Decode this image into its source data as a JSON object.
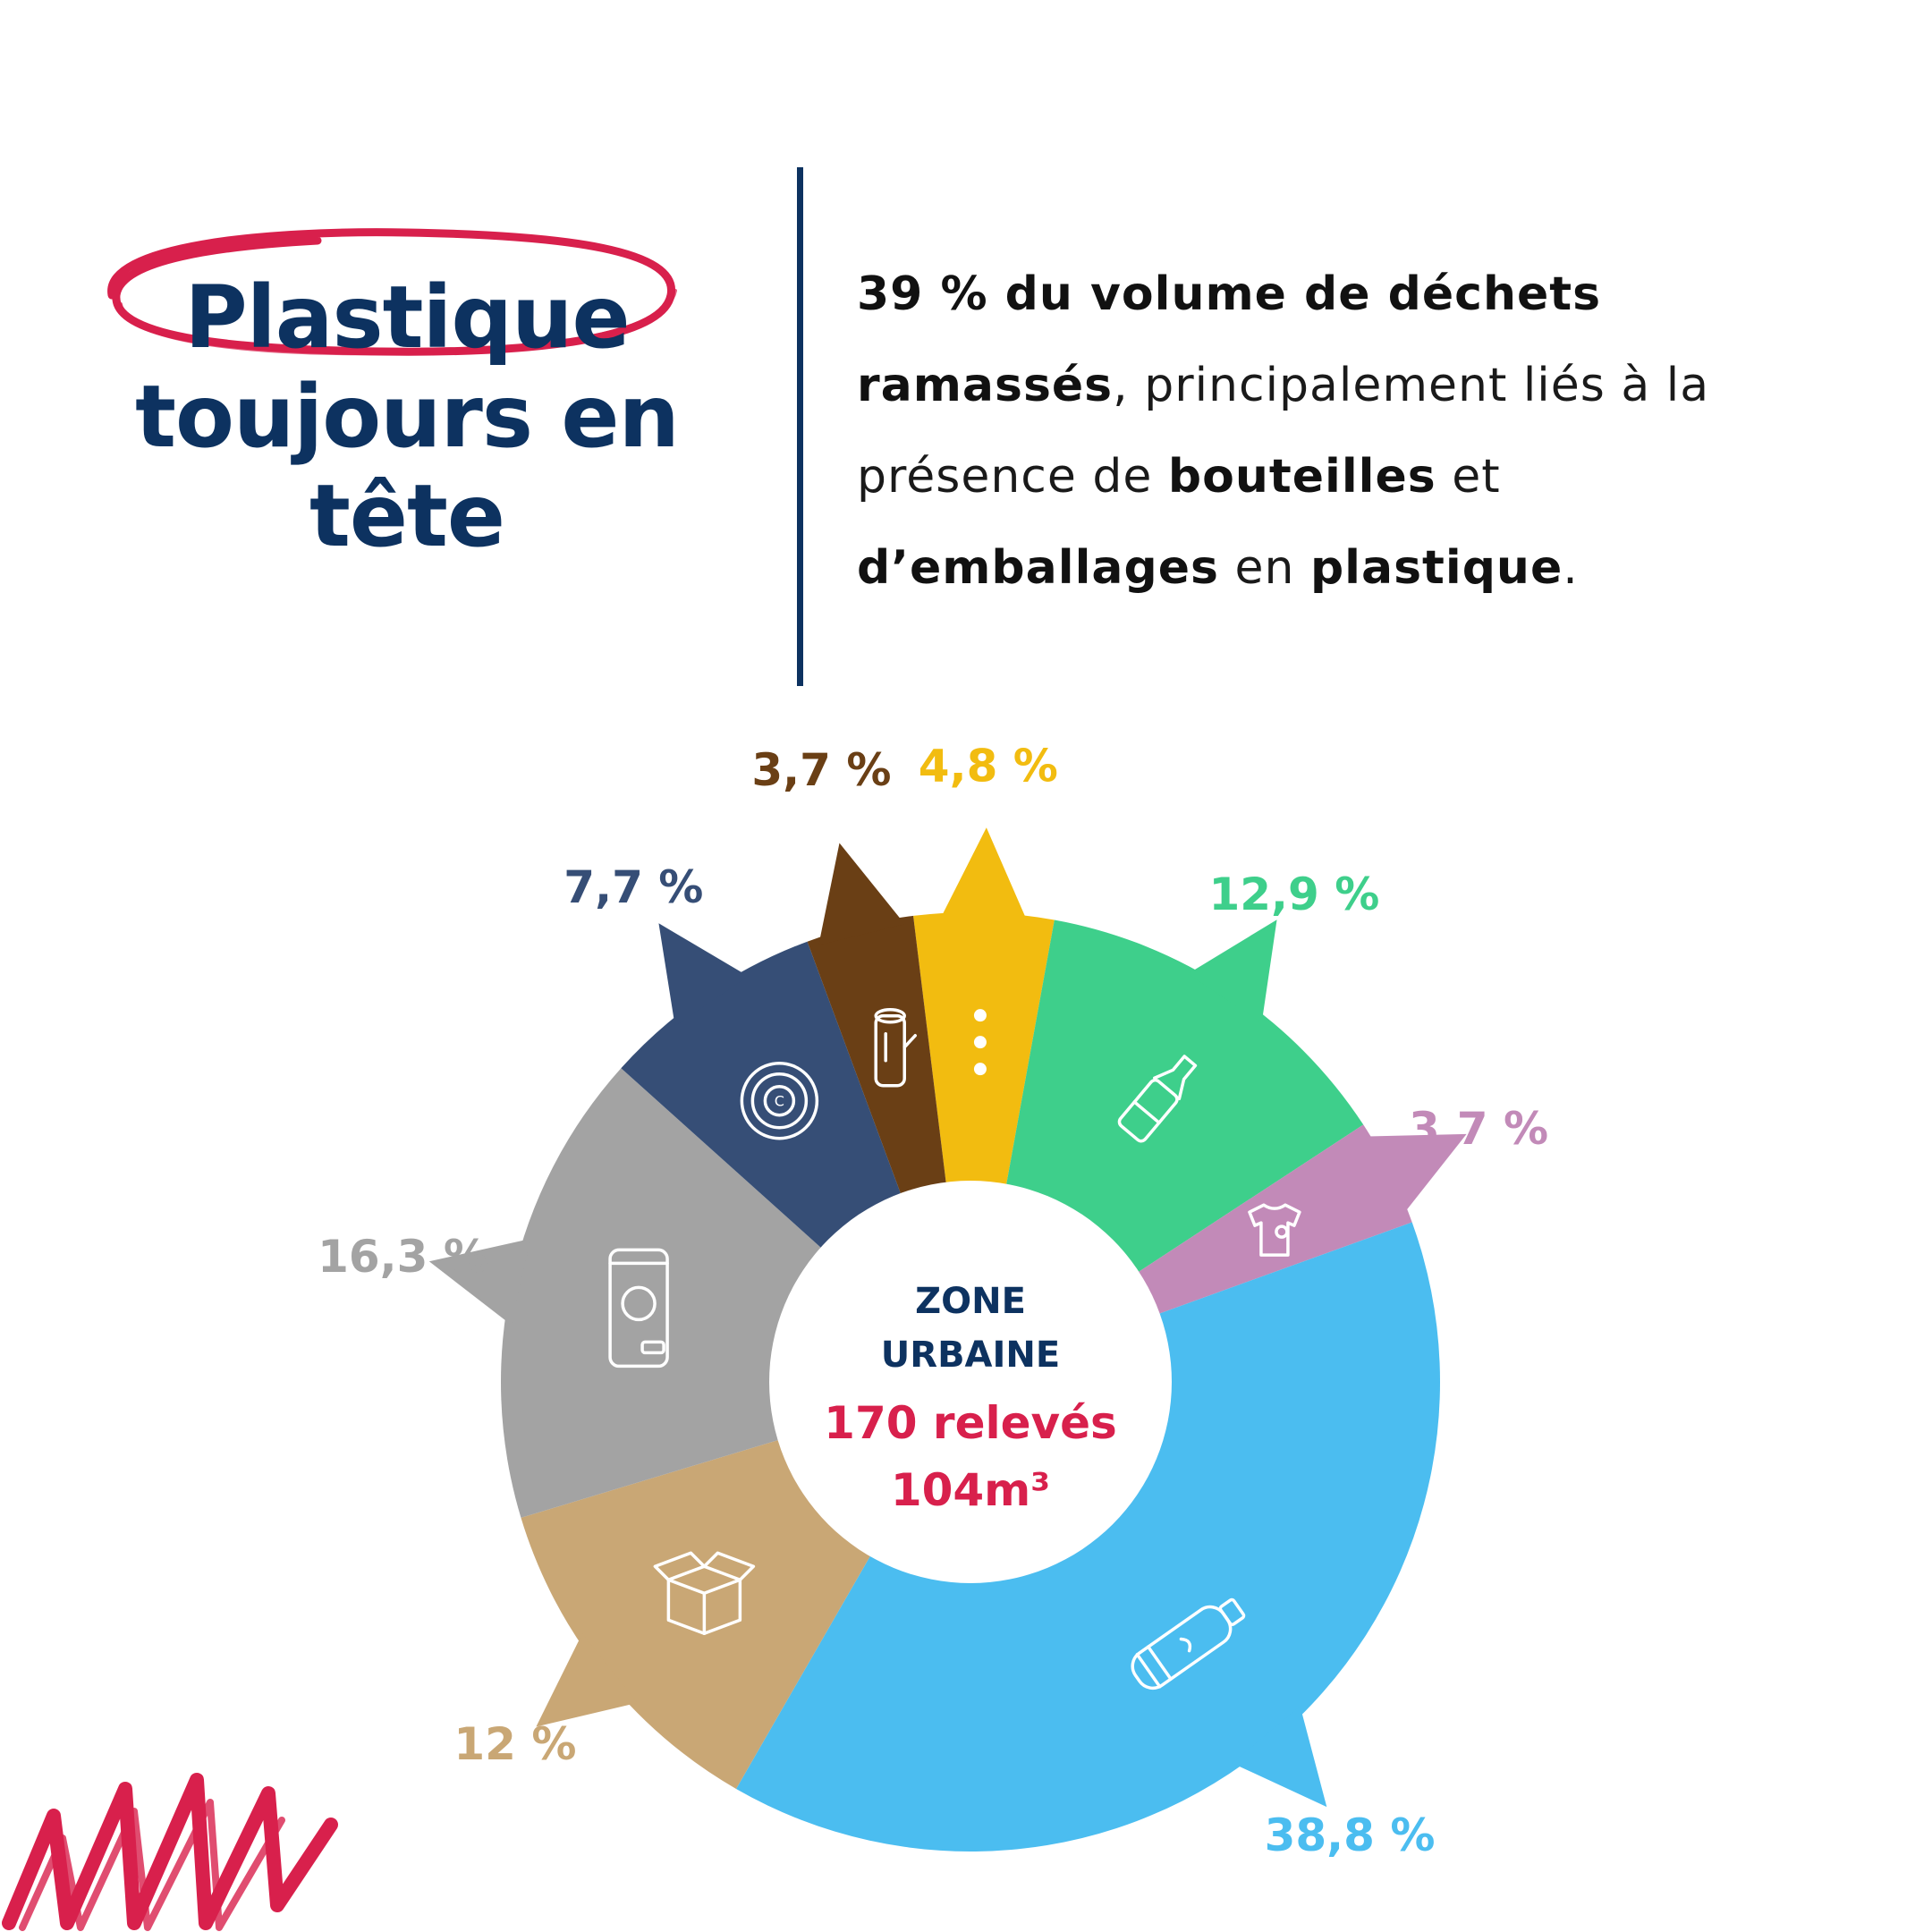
{
  "title": {
    "lines": [
      "Plastique",
      "toujours en",
      "tête"
    ],
    "color": "#0d3260",
    "circle_color": "#d8204c"
  },
  "intro": {
    "parts": [
      {
        "text": "39 % du volume de déchets ramassés",
        "bold": true
      },
      {
        "text": ", principalement liés à la présence de ",
        "bold": false
      },
      {
        "text": "bouteilles",
        "bold": true
      },
      {
        "text": " et ",
        "bold": false
      },
      {
        "text": "d’emballages",
        "bold": true
      },
      {
        "text": " en ",
        "bold": false
      },
      {
        "text": "plastique",
        "bold": true
      },
      {
        "text": ".",
        "bold": false
      }
    ]
  },
  "chart_data": {
    "type": "pie",
    "donut": true,
    "center": {
      "line1": "ZONE",
      "line2": "URBAINE",
      "count_text": "170 relevés",
      "volume_text": "104m³"
    },
    "slices": [
      {
        "label": "4,8 %",
        "value": 4.8,
        "color": "#f2bc10",
        "icon": "dots-icon"
      },
      {
        "label": "12,9 %",
        "value": 12.9,
        "color": "#3ecf8b",
        "icon": "glass-bottle-icon"
      },
      {
        "label": "3,7 %",
        "value": 3.7,
        "color": "#c28ab8",
        "icon": "tshirt-icon"
      },
      {
        "label": "38,8 %",
        "value": 38.8,
        "color": "#4bbdf0",
        "icon": "plastic-bottle-icon"
      },
      {
        "label": "12 %",
        "value": 12,
        "color": "#c9a775",
        "icon": "cardboard-box-icon"
      },
      {
        "label": "16,3 %",
        "value": 16.3,
        "color": "#a3a3a3",
        "icon": "can-icon"
      },
      {
        "label": "7,7 %",
        "value": 7.7,
        "color": "#364e76",
        "icon": "tire-icon"
      },
      {
        "label": "3,7 %",
        "value": 3.7,
        "color": "#6a3f15",
        "icon": "wood-log-icon"
      }
    ]
  },
  "colors": {
    "accent_red": "#d8204c",
    "navy": "#0d3260"
  }
}
